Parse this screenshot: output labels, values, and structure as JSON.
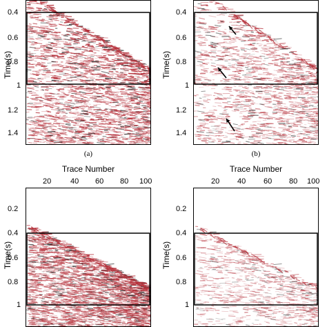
{
  "figure": {
    "panels": [
      {
        "id": "a",
        "caption": "(a)",
        "y_label": "Time(s)",
        "y_ticks": [
          "0.4",
          "0.6",
          "0.8",
          "1",
          "1.2",
          "1.4"
        ],
        "x_title": "",
        "x_ticks": [],
        "arrows": 0
      },
      {
        "id": "b",
        "caption": "(b)",
        "y_label": "Time(s)",
        "y_ticks": [
          "0.4",
          "0.6",
          "0.8",
          "1",
          "1.2",
          "1.4"
        ],
        "x_title": "",
        "x_ticks": [],
        "arrows": 3
      },
      {
        "id": "c",
        "caption": "",
        "y_label": "Time(s)",
        "y_ticks": [
          "0.2",
          "0.4",
          "0.6",
          "0.8",
          "1"
        ],
        "x_title": "Trace Number",
        "x_ticks": [
          "20",
          "40",
          "60",
          "80",
          "100"
        ],
        "arrows": 0
      },
      {
        "id": "d",
        "caption": "",
        "y_label": "Time(s)",
        "y_ticks": [
          "0.2",
          "0.4",
          "0.6",
          "0.8",
          "1"
        ],
        "x_title": "Trace Number",
        "x_ticks": [
          "20",
          "40",
          "60",
          "80",
          "100"
        ],
        "arrows": 0
      }
    ],
    "colors": {
      "seismic": "#b5303a",
      "frame": "#000000",
      "background": "#ffffff"
    }
  }
}
